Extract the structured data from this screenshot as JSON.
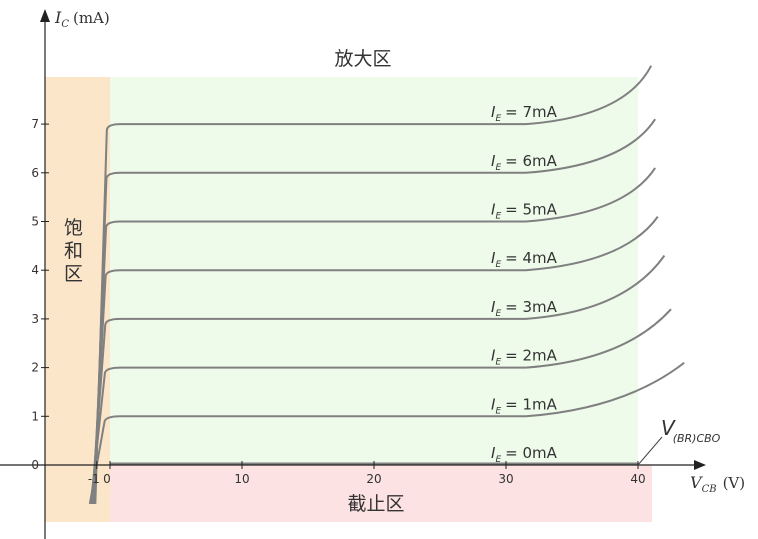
{
  "chart_data": {
    "type": "line",
    "ylabel_var": "I",
    "ylabel_sub": "C",
    "ylabel_unit": "(mA)",
    "xlabel_var": "V",
    "xlabel_sub": "CB",
    "xlabel_unit": "(V)",
    "xlim": [
      -2.5,
      42
    ],
    "ylim": [
      -1.2,
      8.7
    ],
    "x_ticks": [
      -1,
      0,
      10,
      20,
      30,
      40
    ],
    "y_ticks": [
      0,
      1,
      2,
      3,
      4,
      5,
      6,
      7
    ],
    "regions": {
      "active": "放大区",
      "saturation": "饱和区",
      "cutoff": "截止区"
    },
    "breakdown_label_main": "V",
    "breakdown_label_sub": "(BR)CBO",
    "colors": {
      "active": "#eefbea",
      "saturation": "#fbe6c9",
      "cutoff": "#fde2e4",
      "curve": "#808080"
    },
    "series": [
      {
        "label_var": "I",
        "label_sub": "E",
        "label_text": "= 0mA",
        "ic": 0
      },
      {
        "label_var": "I",
        "label_sub": "E",
        "label_text": "= 1mA",
        "ic": 1,
        "x_end": 43.5,
        "y_end": 2.1
      },
      {
        "label_var": "I",
        "label_sub": "E",
        "label_text": "= 2mA",
        "ic": 2,
        "x_end": 42.5,
        "y_end": 3.2
      },
      {
        "label_var": "I",
        "label_sub": "E",
        "label_text": "= 3mA",
        "ic": 3,
        "x_end": 42.0,
        "y_end": 4.3
      },
      {
        "label_var": "I",
        "label_sub": "E",
        "label_text": "= 4mA",
        "ic": 4,
        "x_end": 41.5,
        "y_end": 5.1
      },
      {
        "label_var": "I",
        "label_sub": "E",
        "label_text": "= 5mA",
        "ic": 5,
        "x_end": 41.3,
        "y_end": 6.1
      },
      {
        "label_var": "I",
        "label_sub": "E",
        "label_text": "= 6mA",
        "ic": 6,
        "x_end": 41.3,
        "y_end": 7.1
      },
      {
        "label_var": "I",
        "label_sub": "E",
        "label_text": "= 7mA",
        "ic": 7,
        "x_end": 41.0,
        "y_end": 8.2
      }
    ]
  }
}
